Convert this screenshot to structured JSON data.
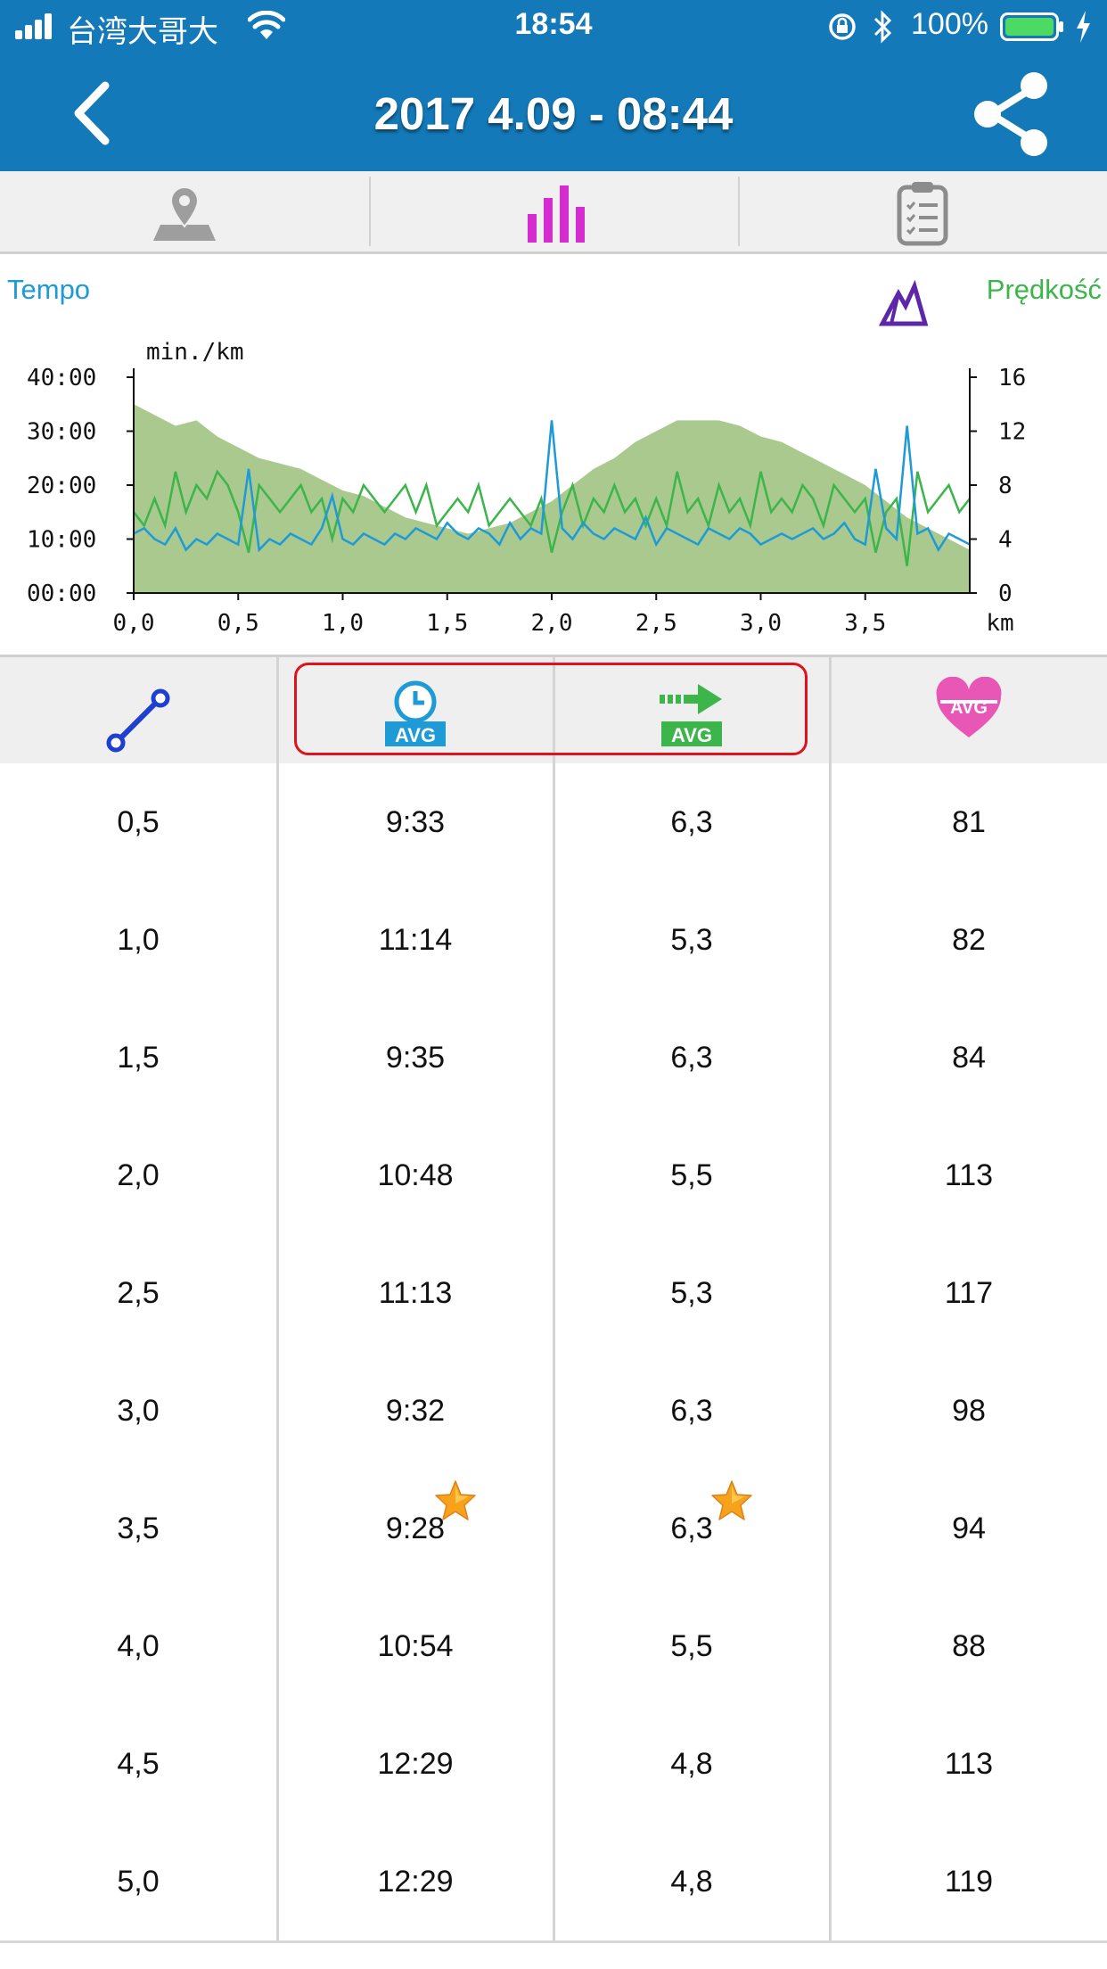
{
  "status_bar": {
    "carrier": "台湾大哥大",
    "time": "18:54",
    "battery": "100%"
  },
  "header": {
    "title": "2017 4.09 - 08:44",
    "back_icon": "chevron-left-icon",
    "share_icon": "share-icon"
  },
  "tabs": [
    {
      "icon": "map-pin-icon",
      "active": false
    },
    {
      "icon": "bar-chart-icon",
      "active": true
    },
    {
      "icon": "clipboard-checklist-icon",
      "active": false
    }
  ],
  "chart": {
    "legend_left": "Tempo",
    "legend_right": "Prędkość",
    "mountain_icon": "mountain-icon"
  },
  "chart_data": {
    "type": "line",
    "ylabel": "min./km",
    "xlabel": "km",
    "x_ticks": [
      "0,0",
      "0,5",
      "1,0",
      "1,5",
      "2,0",
      "2,5",
      "3,0",
      "3,5"
    ],
    "y_left_ticks": [
      "00:00",
      "10:00",
      "20:00",
      "30:00",
      "40:00"
    ],
    "y_right_ticks": [
      "0",
      "4",
      "8",
      "12",
      "16"
    ],
    "xlim": [
      0,
      4.0
    ],
    "ylim_left_min": [
      0,
      40
    ],
    "ylim_right": [
      0,
      16
    ],
    "colors": {
      "tempo": "#1e9ad6",
      "speed": "#3cb54a",
      "altitude": "#a9c98f"
    },
    "series": [
      {
        "key": "altitude_area",
        "x": [
          0.0,
          0.1,
          0.2,
          0.3,
          0.4,
          0.5,
          0.6,
          0.7,
          0.8,
          0.9,
          1.0,
          1.1,
          1.2,
          1.3,
          1.4,
          1.5,
          1.6,
          1.7,
          1.8,
          1.9,
          2.0,
          2.1,
          2.2,
          2.3,
          2.4,
          2.5,
          2.6,
          2.7,
          2.8,
          2.9,
          3.0,
          3.1,
          3.2,
          3.3,
          3.4,
          3.5,
          3.6,
          3.7,
          3.8,
          3.9,
          4.0
        ],
        "values": [
          35,
          33,
          31,
          32,
          29,
          27,
          25,
          24,
          23,
          21,
          19,
          18,
          16,
          14,
          13,
          12,
          11,
          12,
          13,
          15,
          17,
          20,
          23,
          25,
          28,
          30,
          32,
          32,
          32,
          31,
          29,
          28,
          26,
          24,
          22,
          20,
          17,
          14,
          12,
          10,
          8
        ]
      },
      {
        "key": "tempo_line",
        "x": [
          0.0,
          0.05,
          0.1,
          0.15,
          0.2,
          0.25,
          0.3,
          0.35,
          0.4,
          0.45,
          0.5,
          0.55,
          0.6,
          0.65,
          0.7,
          0.75,
          0.8,
          0.85,
          0.9,
          0.95,
          1.0,
          1.05,
          1.1,
          1.15,
          1.2,
          1.25,
          1.3,
          1.35,
          1.4,
          1.45,
          1.5,
          1.55,
          1.6,
          1.65,
          1.7,
          1.75,
          1.8,
          1.85,
          1.9,
          1.95,
          2.0,
          2.05,
          2.1,
          2.15,
          2.2,
          2.25,
          2.3,
          2.35,
          2.4,
          2.45,
          2.5,
          2.55,
          2.6,
          2.65,
          2.7,
          2.75,
          2.8,
          2.85,
          2.9,
          2.95,
          3.0,
          3.05,
          3.1,
          3.15,
          3.2,
          3.25,
          3.3,
          3.35,
          3.4,
          3.45,
          3.5,
          3.55,
          3.6,
          3.65,
          3.7,
          3.75,
          3.8,
          3.85,
          3.9,
          3.95,
          4.0
        ],
        "values": [
          11,
          12,
          10,
          9,
          12,
          8,
          10,
          9,
          11,
          10,
          9,
          23,
          8,
          10,
          9,
          11,
          10,
          9,
          12,
          18,
          10,
          9,
          11,
          10,
          9,
          11,
          10,
          12,
          11,
          10,
          13,
          11,
          10,
          12,
          11,
          9,
          13,
          10,
          12,
          11,
          32,
          12,
          10,
          13,
          11,
          10,
          12,
          11,
          10,
          14,
          9,
          12,
          11,
          10,
          9,
          12,
          11,
          10,
          12,
          11,
          9,
          10,
          11,
          10,
          11,
          12,
          10,
          11,
          13,
          10,
          9,
          23,
          12,
          10,
          31,
          11,
          12,
          8,
          11,
          10,
          9
        ]
      },
      {
        "key": "speed_line",
        "x": [
          0.0,
          0.05,
          0.1,
          0.15,
          0.2,
          0.25,
          0.3,
          0.35,
          0.4,
          0.45,
          0.5,
          0.55,
          0.6,
          0.65,
          0.7,
          0.75,
          0.8,
          0.85,
          0.9,
          0.95,
          1.0,
          1.05,
          1.1,
          1.15,
          1.2,
          1.25,
          1.3,
          1.35,
          1.4,
          1.45,
          1.5,
          1.55,
          1.6,
          1.65,
          1.7,
          1.75,
          1.8,
          1.85,
          1.9,
          1.95,
          2.0,
          2.05,
          2.1,
          2.15,
          2.2,
          2.25,
          2.3,
          2.35,
          2.4,
          2.45,
          2.5,
          2.55,
          2.6,
          2.65,
          2.7,
          2.75,
          2.8,
          2.85,
          2.9,
          2.95,
          3.0,
          3.05,
          3.1,
          3.15,
          3.2,
          3.25,
          3.3,
          3.35,
          3.4,
          3.45,
          3.5,
          3.55,
          3.6,
          3.65,
          3.7,
          3.75,
          3.8,
          3.85,
          3.9,
          3.95,
          4.0
        ],
        "values": [
          6,
          5,
          7,
          5,
          9,
          6,
          8,
          7,
          9,
          8,
          6,
          3,
          8,
          7,
          6,
          7,
          8,
          6,
          7,
          4,
          7,
          6,
          8,
          7,
          6,
          7,
          8,
          6,
          8,
          5,
          6,
          7,
          6,
          8,
          5,
          6,
          7,
          6,
          5,
          7,
          3,
          6,
          8,
          5,
          7,
          6,
          8,
          6,
          7,
          5,
          7,
          5,
          9,
          6,
          7,
          5,
          8,
          6,
          7,
          5,
          9,
          6,
          7,
          6,
          8,
          7,
          5,
          8,
          7,
          6,
          7,
          3,
          6,
          7,
          2,
          9,
          6,
          7,
          8,
          6,
          7
        ]
      }
    ]
  },
  "table": {
    "header_icons": [
      "distance-icon",
      "avg-pace-clock-icon",
      "avg-speed-arrow-icon",
      "avg-heart-rate-icon"
    ],
    "header_badge": "AVG",
    "rows": [
      {
        "dist": "0,5",
        "pace": "9:33",
        "speed": "6,3",
        "hr": "81",
        "best": false
      },
      {
        "dist": "1,0",
        "pace": "11:14",
        "speed": "5,3",
        "hr": "82",
        "best": false
      },
      {
        "dist": "1,5",
        "pace": "9:35",
        "speed": "6,3",
        "hr": "84",
        "best": false
      },
      {
        "dist": "2,0",
        "pace": "10:48",
        "speed": "5,5",
        "hr": "113",
        "best": false
      },
      {
        "dist": "2,5",
        "pace": "11:13",
        "speed": "5,3",
        "hr": "117",
        "best": false
      },
      {
        "dist": "3,0",
        "pace": "9:32",
        "speed": "6,3",
        "hr": "98",
        "best": false
      },
      {
        "dist": "3,5",
        "pace": "9:28",
        "speed": "6,3",
        "hr": "94",
        "best": true
      },
      {
        "dist": "4,0",
        "pace": "10:54",
        "speed": "5,5",
        "hr": "88",
        "best": false
      },
      {
        "dist": "4,5",
        "pace": "12:29",
        "speed": "4,8",
        "hr": "113",
        "best": false
      },
      {
        "dist": "5,0",
        "pace": "12:29",
        "speed": "4,8",
        "hr": "119",
        "best": false
      }
    ]
  }
}
